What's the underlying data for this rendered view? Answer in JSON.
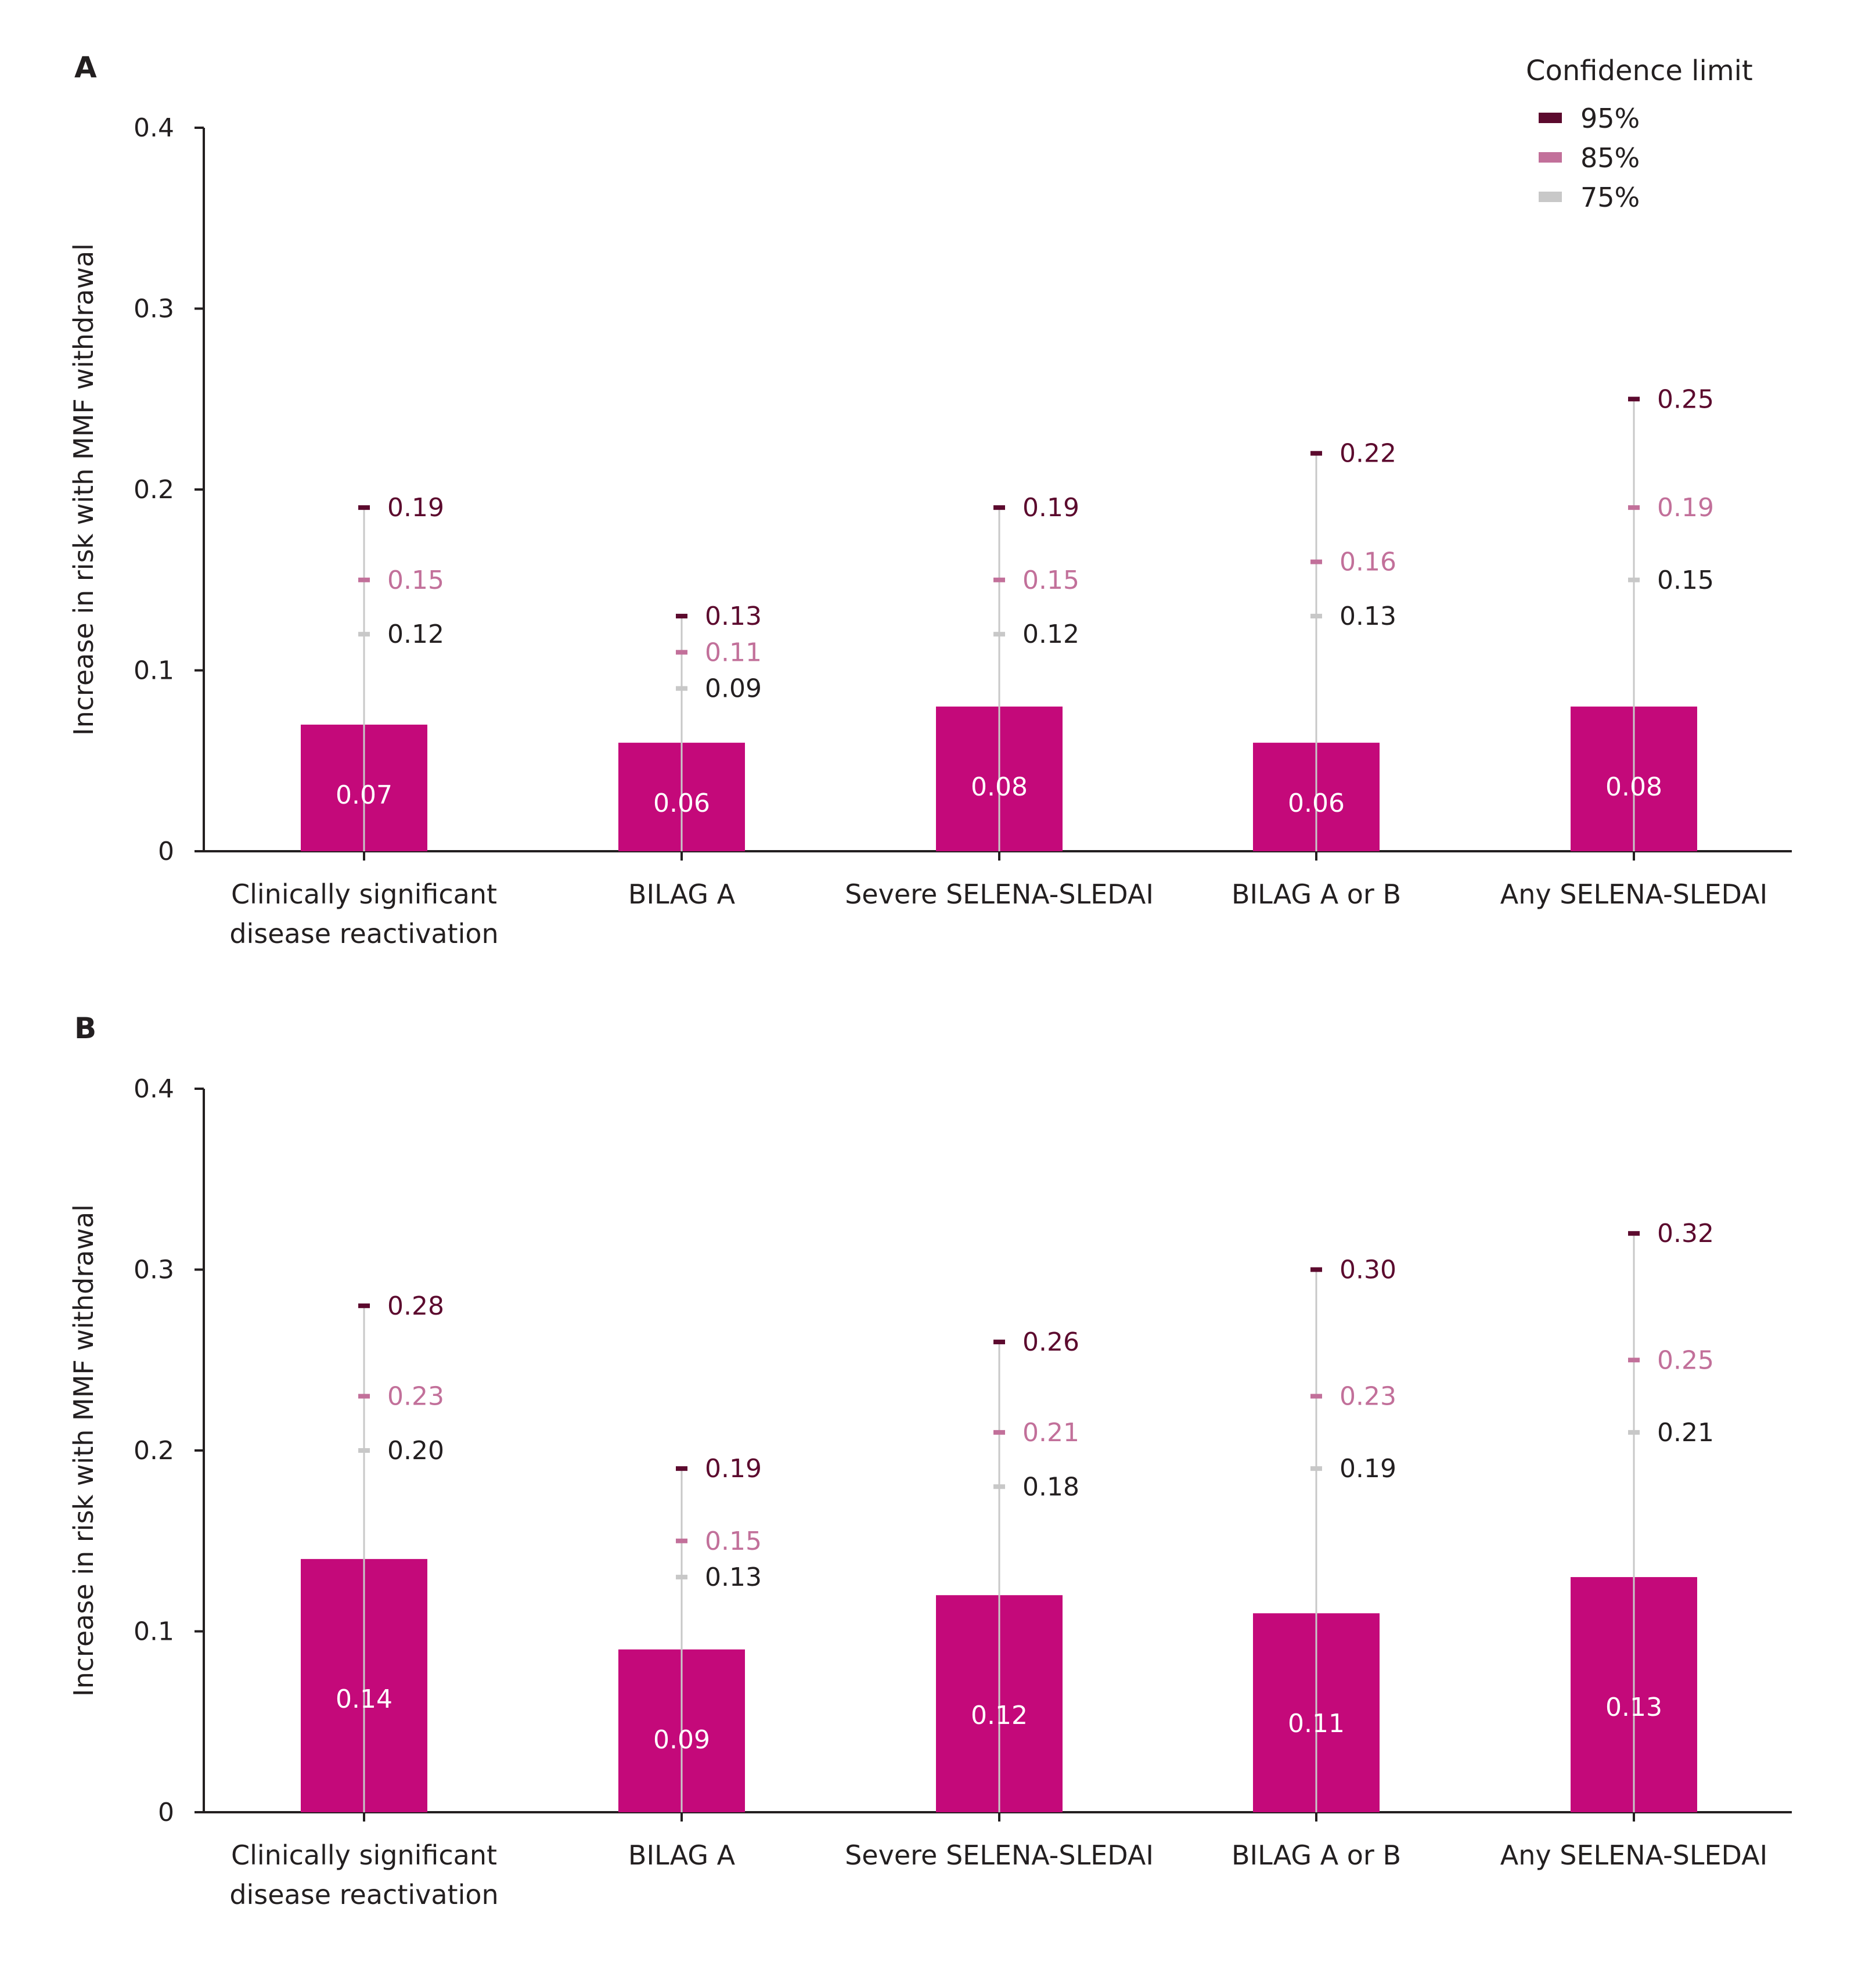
{
  "legend": {
    "title": "Confidence limit",
    "items": [
      {
        "label": "95%",
        "color": "#5c0a2e"
      },
      {
        "label": "85%",
        "color": "#c2709a"
      },
      {
        "label": "75%",
        "color": "#c8c8c8"
      }
    ]
  },
  "colors": {
    "bar": "#c4097a",
    "whisker": "#c8c8c8",
    "cl95_text": "#5c0a2e",
    "cl85_text": "#c2709a",
    "cl75_text": "#231f20"
  },
  "chart_data": [
    {
      "panel": "A",
      "type": "bar",
      "ylabel": "Increase in risk with MMF withdrawal",
      "ylim": [
        0,
        0.4
      ],
      "yticks": [
        "0",
        "0.1",
        "0.2",
        "0.3",
        "0.4"
      ],
      "ytick_values": [
        0,
        0.1,
        0.2,
        0.3,
        0.4
      ],
      "categories": [
        [
          "Clinically significant",
          "disease reactivation"
        ],
        [
          "BILAG A"
        ],
        [
          "Severe SELENA-SLEDAI"
        ],
        [
          "BILAG A or B"
        ],
        [
          "Any SELENA-SLEDAI"
        ]
      ],
      "values": [
        0.07,
        0.06,
        0.08,
        0.06,
        0.08
      ],
      "value_labels": [
        "0.07",
        "0.06",
        "0.08",
        "0.06",
        "0.08"
      ],
      "cl95": [
        0.19,
        0.13,
        0.19,
        0.22,
        0.25
      ],
      "cl95_labels": [
        "0.19",
        "0.13",
        "0.19",
        "0.22",
        "0.25"
      ],
      "cl85": [
        0.15,
        0.11,
        0.15,
        0.16,
        0.19
      ],
      "cl85_labels": [
        "0.15",
        "0.11",
        "0.15",
        "0.16",
        "0.19"
      ],
      "cl75": [
        0.12,
        0.09,
        0.12,
        0.13,
        0.15
      ],
      "cl75_labels": [
        "0.12",
        "0.09",
        "0.12",
        "0.13",
        "0.15"
      ]
    },
    {
      "panel": "B",
      "type": "bar",
      "ylabel": "Increase in risk with MMF withdrawal",
      "ylim": [
        0,
        0.4
      ],
      "yticks": [
        "0",
        "0.1",
        "0.2",
        "0.3",
        "0.4"
      ],
      "ytick_values": [
        0,
        0.1,
        0.2,
        0.3,
        0.4
      ],
      "categories": [
        [
          "Clinically significant",
          "disease reactivation"
        ],
        [
          "BILAG A"
        ],
        [
          "Severe SELENA-SLEDAI"
        ],
        [
          "BILAG A or B"
        ],
        [
          "Any SELENA-SLEDAI"
        ]
      ],
      "values": [
        0.14,
        0.09,
        0.12,
        0.11,
        0.13
      ],
      "value_labels": [
        "0.14",
        "0.09",
        "0.12",
        "0.11",
        "0.13"
      ],
      "cl95": [
        0.28,
        0.19,
        0.26,
        0.3,
        0.32
      ],
      "cl95_labels": [
        "0.28",
        "0.19",
        "0.26",
        "0.30",
        "0.32"
      ],
      "cl85": [
        0.23,
        0.15,
        0.21,
        0.23,
        0.25
      ],
      "cl85_labels": [
        "0.23",
        "0.15",
        "0.21",
        "0.23",
        "0.25"
      ],
      "cl75": [
        0.2,
        0.13,
        0.18,
        0.19,
        0.21
      ],
      "cl75_labels": [
        "0.20",
        "0.13",
        "0.18",
        "0.19",
        "0.21"
      ]
    }
  ]
}
